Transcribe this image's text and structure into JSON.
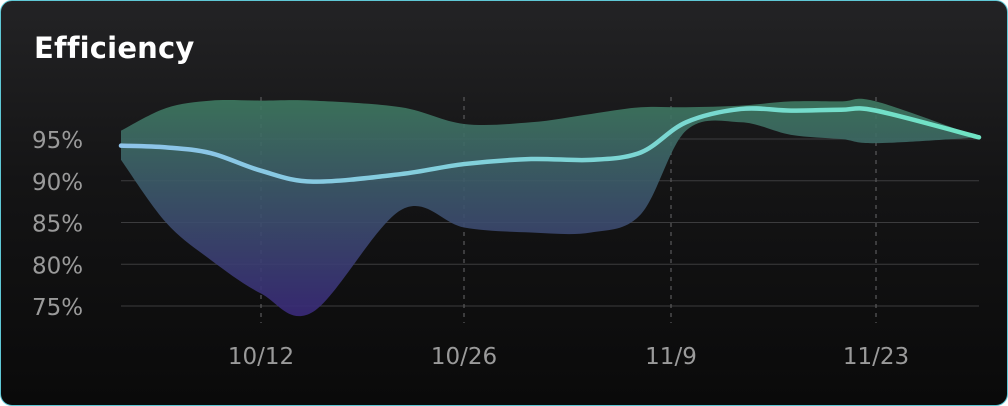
{
  "title": "Efficiency",
  "colors": {
    "band_top": "#3e7a60",
    "band_bottom": "#3a2a7a",
    "line_start": "#8ec3ea",
    "line_end": "#6fe3c4",
    "grid": "#3c3c3e",
    "tick_text": "#9a9a9a",
    "title_text": "#ffffff",
    "card_border": "#5fc8d6"
  },
  "chart_data": {
    "type": "area",
    "title": "Efficiency",
    "xlabel": "",
    "ylabel": "",
    "x_ticks": [
      "10/12",
      "10/26",
      "11/9",
      "11/23"
    ],
    "y_ticks": [
      "95%",
      "90%",
      "85%",
      "80%",
      "75%"
    ],
    "ylim": [
      73,
      102
    ],
    "grid": {
      "horizontal": true,
      "vertical_dashed": true
    },
    "x": [
      "10/2",
      "10/6",
      "10/9",
      "10/12",
      "10/16",
      "10/20",
      "10/26",
      "10/30",
      "11/2",
      "11/6",
      "11/9",
      "11/13",
      "11/16",
      "11/20",
      "11/23",
      "11/27"
    ],
    "series": [
      {
        "name": "",
        "role": "average",
        "values": [
          94.2,
          94.0,
          93.3,
          91.2,
          89.9,
          90.8,
          92.0,
          92.6,
          92.5,
          93.4,
          97.0,
          98.6,
          98.4,
          98.5,
          98.4,
          95.2
        ]
      },
      {
        "name": "",
        "role": "upper",
        "values": [
          96.0,
          98.7,
          99.6,
          99.6,
          99.6,
          98.8,
          96.8,
          97.0,
          98.0,
          98.8,
          98.8,
          99.0,
          99.5,
          99.5,
          99.5,
          95.2
        ]
      },
      {
        "name": "",
        "role": "lower",
        "values": [
          92.5,
          85.0,
          80.5,
          76.5,
          74.3,
          86.5,
          84.4,
          83.8,
          83.8,
          86.0,
          96.0,
          97.0,
          95.5,
          95.0,
          94.5,
          95.2
        ]
      }
    ]
  }
}
